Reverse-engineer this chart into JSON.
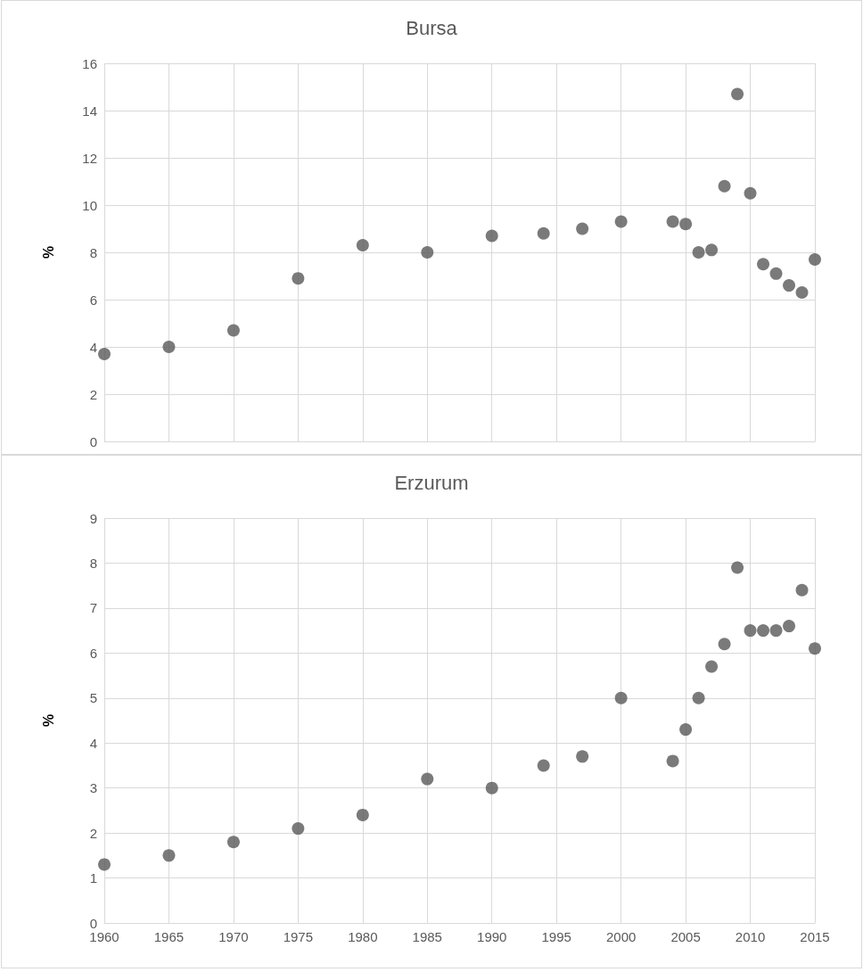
{
  "chart_data": [
    {
      "type": "scatter",
      "title": "Bursa",
      "ylabel": "%",
      "x": [
        1960,
        1965,
        1970,
        1975,
        1980,
        1985,
        1990,
        1994,
        1997,
        2000,
        2004,
        2005,
        2006,
        2007,
        2008,
        2009,
        2010,
        2011,
        2012,
        2013,
        2014,
        2015
      ],
      "series": [
        {
          "color": "#595959",
          "values": [
            3.7,
            4.0,
            4.7,
            6.9,
            8.3,
            8.0,
            8.7,
            8.8,
            9.0,
            9.3,
            9.3,
            9.2,
            8.0,
            8.1,
            10.8,
            14.7,
            10.5,
            7.5,
            7.1,
            6.6,
            6.3,
            7.7
          ]
        }
      ],
      "xlim": [
        1960,
        2015
      ],
      "xticks": [
        1960,
        1965,
        1970,
        1975,
        1980,
        1985,
        1990,
        1995,
        2000,
        2005,
        2010,
        2015
      ],
      "ylim": [
        0,
        16
      ],
      "yticks": [
        0,
        2,
        4,
        6,
        8,
        10,
        12,
        14,
        16
      ],
      "tick_labels": "y",
      "grid": true,
      "marker": "circle"
    },
    {
      "type": "scatter",
      "title": "Erzurum",
      "ylabel": "%",
      "x": [
        1960,
        1965,
        1970,
        1975,
        1980,
        1985,
        1990,
        1994,
        1997,
        2000,
        2004,
        2005,
        2006,
        2007,
        2008,
        2009,
        2010,
        2011,
        2012,
        2013,
        2014,
        2015
      ],
      "series": [
        {
          "color": "#595959",
          "values": [
            1.3,
            1.5,
            1.8,
            2.1,
            2.4,
            3.2,
            3.0,
            3.5,
            3.7,
            5.0,
            3.6,
            4.3,
            5.0,
            5.7,
            6.2,
            7.9,
            6.5,
            6.5,
            6.5,
            6.6,
            7.4,
            6.1
          ]
        }
      ],
      "xlim": [
        1960,
        2015
      ],
      "xticks": [
        1960,
        1965,
        1970,
        1975,
        1980,
        1985,
        1990,
        1995,
        2000,
        2005,
        2010,
        2015
      ],
      "ylim": [
        0,
        9
      ],
      "yticks": [
        0,
        1,
        2,
        3,
        4,
        5,
        6,
        7,
        8,
        9
      ],
      "grid": true,
      "marker": "circle"
    }
  ]
}
